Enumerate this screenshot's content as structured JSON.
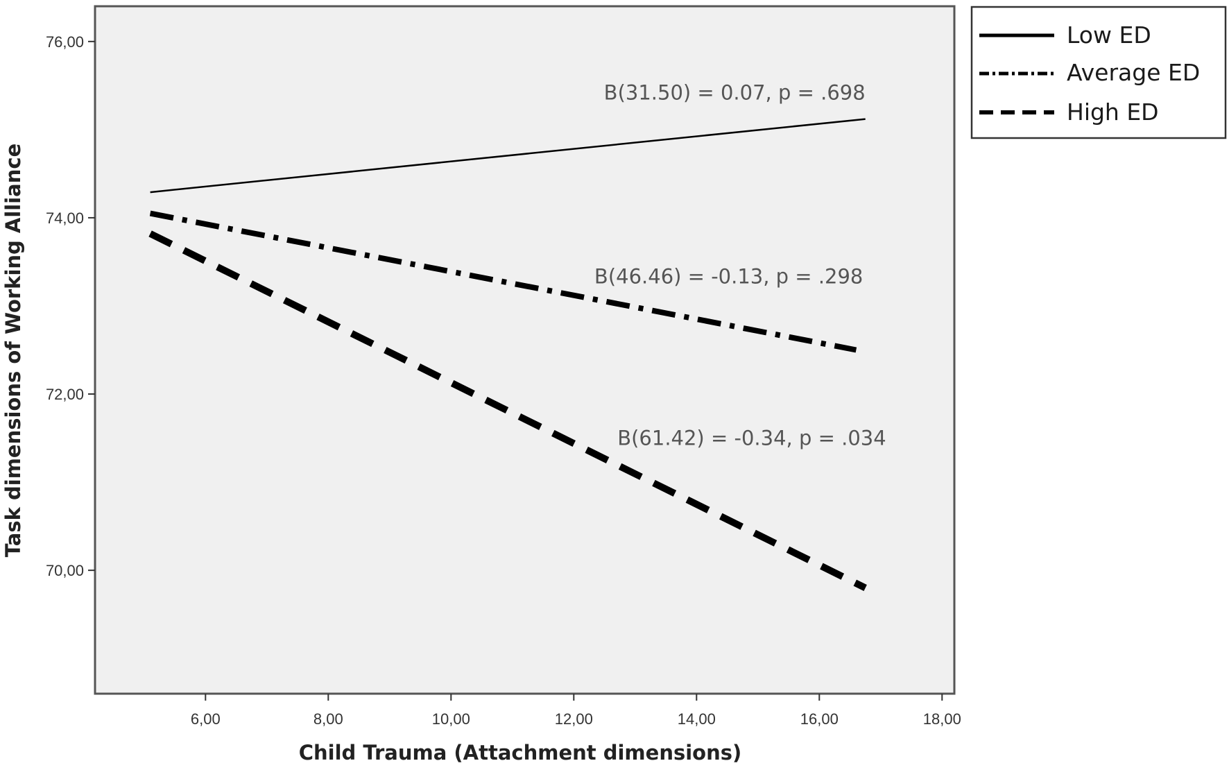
{
  "chart_data": {
    "type": "line",
    "title": "",
    "xlabel": "Child Trauma (Attachment dimensions)",
    "ylabel": "Task dimensions of Working Alliance",
    "xlim": [
      4.2,
      18.2
    ],
    "ylim": [
      68.6,
      76.4
    ],
    "x_ticks": [
      6,
      8,
      10,
      12,
      14,
      16,
      18
    ],
    "x_tick_labels": [
      "6,00",
      "8,00",
      "10,00",
      "12,00",
      "14,00",
      "16,00",
      "18,00"
    ],
    "y_ticks": [
      70,
      72,
      74,
      76
    ],
    "y_tick_labels": [
      "70,00",
      "72,00",
      "74,00",
      "76,00"
    ],
    "grid": false,
    "legend_position": "right-top",
    "series": [
      {
        "name": "Low ED",
        "style": "solid",
        "x": [
          5.1,
          16.75
        ],
        "y": [
          74.29,
          75.12
        ],
        "annotation": "B(31.50) = 0.07, p = .698"
      },
      {
        "name": "Average ED",
        "style": "dashdot",
        "x": [
          5.1,
          16.6
        ],
        "y": [
          74.05,
          72.5
        ],
        "annotation": "B(46.46) = -0.13, p = .298"
      },
      {
        "name": "High ED",
        "style": "dashed",
        "x": [
          5.1,
          16.75
        ],
        "y": [
          73.82,
          69.8
        ],
        "annotation": "B(61.42) = -0.34, p = .034"
      }
    ],
    "colors": {
      "line": "#000000",
      "plot_background": "#f0f0f0",
      "annotation_text": "#555555"
    }
  }
}
